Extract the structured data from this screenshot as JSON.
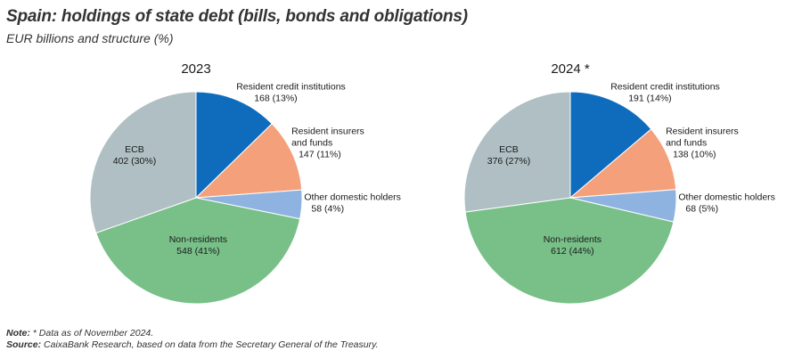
{
  "title": "Spain: holdings of state debt (bills, bonds and obligations)",
  "subtitle": "EUR billions and structure (%)",
  "notes": {
    "note_label": "Note:",
    "note_text": "* Data as of November 2024.",
    "source_label": "Source:",
    "source_text": "CaixaBank Research, based on data from the Secretary General of the Treasury."
  },
  "chart_data": [
    {
      "type": "pie",
      "title": "2023",
      "slices": [
        {
          "label": "Resident credit institutions",
          "value": 168,
          "value_text": "168 (13%)",
          "color": "#0f6cbd"
        },
        {
          "label": "Resident insurers and funds",
          "value": 147,
          "value_text": "147 (11%)",
          "color": "#f4a07a"
        },
        {
          "label": "Other domestic holders",
          "value": 58,
          "value_text": "58 (4%)",
          "color": "#8fb3e0"
        },
        {
          "label": "Non-residents",
          "value": 548,
          "value_text": "548 (41%)",
          "color": "#78c088"
        },
        {
          "label": "ECB",
          "value": 402,
          "value_text": "402 (30%)",
          "color": "#afbfc3"
        }
      ]
    },
    {
      "type": "pie",
      "title": "2024 *",
      "slices": [
        {
          "label": "Resident credit institutions",
          "value": 191,
          "value_text": "191 (14%)",
          "color": "#0f6cbd"
        },
        {
          "label": "Resident insurers and funds",
          "value": 138,
          "value_text": "138 (10%)",
          "color": "#f4a07a"
        },
        {
          "label": "Other domestic holders",
          "value": 68,
          "value_text": "68 (5%)",
          "color": "#8fb3e0"
        },
        {
          "label": "Non-residents",
          "value": 612,
          "value_text": "612 (44%)",
          "color": "#78c088"
        },
        {
          "label": "ECB",
          "value": 376,
          "value_text": "376 (27%)",
          "color": "#afbfc3"
        }
      ]
    }
  ]
}
